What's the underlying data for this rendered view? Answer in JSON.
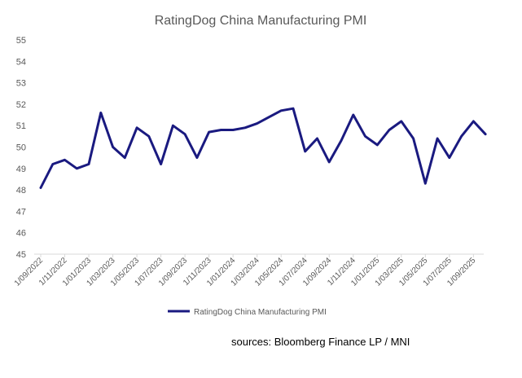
{
  "chart_data": {
    "type": "line",
    "title": "RatingDog China Manufacturing PMI",
    "xlabel": "",
    "ylabel": "",
    "ylim": [
      45,
      55
    ],
    "yticks": [
      "45",
      "46",
      "47",
      "48",
      "49",
      "50",
      "51",
      "52",
      "53",
      "54",
      "55"
    ],
    "x_tick_labels": [
      "1/09/2022",
      "1/11/2022",
      "1/01/2023",
      "1/03/2023",
      "1/05/2023",
      "1/07/2023",
      "1/09/2023",
      "1/11/2023",
      "1/01/2024",
      "1/03/2024",
      "1/05/2024",
      "1/07/2024",
      "1/09/2024",
      "1/11/2024",
      "1/01/2025",
      "1/03/2025",
      "1/05/2025",
      "1/07/2025",
      "1/09/2025"
    ],
    "x": [
      "2022-09",
      "2022-10",
      "2022-11",
      "2022-12",
      "2023-01",
      "2023-02",
      "2023-03",
      "2023-04",
      "2023-05",
      "2023-06",
      "2023-07",
      "2023-08",
      "2023-09",
      "2023-10",
      "2023-11",
      "2023-12",
      "2024-01",
      "2024-02",
      "2024-03",
      "2024-04",
      "2024-05",
      "2024-06",
      "2024-07",
      "2024-08",
      "2024-09",
      "2024-10",
      "2024-11",
      "2024-12",
      "2025-01",
      "2025-02",
      "2025-03",
      "2025-04",
      "2025-05",
      "2025-06",
      "2025-07",
      "2025-08",
      "2025-09",
      "2025-10"
    ],
    "series": [
      {
        "name": "RatingDog China Manufacturing PMI",
        "color": "#1a1a80",
        "values": [
          48.1,
          49.2,
          49.4,
          49.0,
          49.2,
          51.6,
          50.0,
          49.5,
          50.9,
          50.5,
          49.2,
          51.0,
          50.6,
          49.5,
          50.7,
          50.8,
          50.8,
          50.9,
          51.1,
          51.4,
          51.7,
          51.8,
          49.8,
          50.4,
          49.3,
          50.3,
          51.5,
          50.5,
          50.1,
          50.8,
          51.2,
          50.4,
          48.3,
          50.4,
          49.5,
          50.5,
          51.2,
          50.6
        ]
      }
    ],
    "grid": false,
    "legend_position": "bottom"
  },
  "footer": {
    "source": "sources:  Bloomberg Finance LP / MNI"
  }
}
